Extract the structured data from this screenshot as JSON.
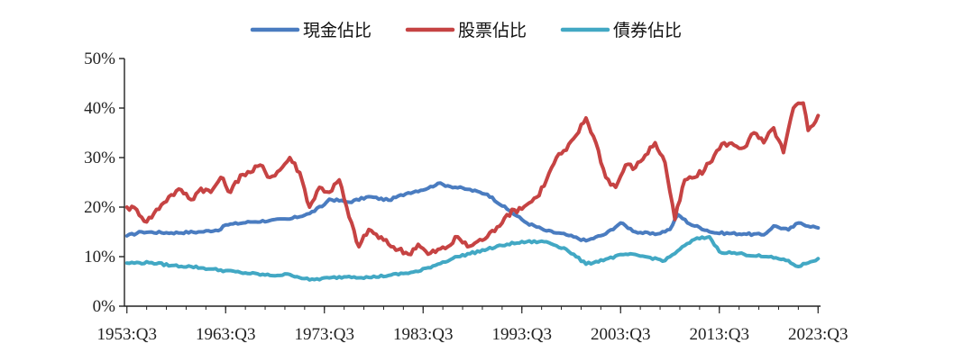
{
  "chart_data": {
    "type": "line",
    "ylim": [
      0,
      50
    ],
    "y_ticks": [
      "0%",
      "10%",
      "20%",
      "30%",
      "40%",
      "50%"
    ],
    "x_ticks": [
      "1953:Q3",
      "1963:Q3",
      "1973:Q3",
      "1983:Q3",
      "1993:Q3",
      "2003:Q3",
      "2013:Q3",
      "2023:Q3"
    ],
    "x_range": [
      "1953:Q3",
      "2023:Q3"
    ],
    "grid": false,
    "legend_position": "top",
    "series": [
      {
        "name": "現金佔比",
        "color": "#4a7cc0",
        "points": [
          [
            1953.5,
            14.2
          ],
          [
            1955,
            15.0
          ],
          [
            1958,
            14.8
          ],
          [
            1961,
            15.0
          ],
          [
            1963,
            15.5
          ],
          [
            1963.5,
            16.4
          ],
          [
            1966,
            17.0
          ],
          [
            1968,
            17.3
          ],
          [
            1970,
            17.6
          ],
          [
            1972,
            18.7
          ],
          [
            1973.5,
            20.5
          ],
          [
            1974,
            21.6
          ],
          [
            1976,
            21.0
          ],
          [
            1978,
            22.1
          ],
          [
            1980,
            21.4
          ],
          [
            1982,
            22.9
          ],
          [
            1984,
            23.8
          ],
          [
            1985,
            24.8
          ],
          [
            1986,
            24.3
          ],
          [
            1988,
            23.6
          ],
          [
            1990,
            22.6
          ],
          [
            1992,
            19.6
          ],
          [
            1994,
            16.8
          ],
          [
            1996,
            15.2
          ],
          [
            1998,
            14.4
          ],
          [
            2000,
            13.2
          ],
          [
            2002,
            14.6
          ],
          [
            2003.5,
            16.8
          ],
          [
            2005,
            15.0
          ],
          [
            2007,
            14.5
          ],
          [
            2008.5,
            15.5
          ],
          [
            2009.3,
            18.5
          ],
          [
            2010.5,
            16.6
          ],
          [
            2013,
            14.8
          ],
          [
            2016,
            14.6
          ],
          [
            2018,
            14.4
          ],
          [
            2019,
            16.2
          ],
          [
            2020.5,
            15.4
          ],
          [
            2021.5,
            16.8
          ],
          [
            2023.5,
            15.8
          ]
        ]
      },
      {
        "name": "股票佔比",
        "color": "#c64343",
        "points": [
          [
            1953.5,
            20.0
          ],
          [
            1954.5,
            19.5
          ],
          [
            1955.5,
            17.0
          ],
          [
            1957,
            20.5
          ],
          [
            1958,
            22.5
          ],
          [
            1959,
            23.5
          ],
          [
            1960,
            21.5
          ],
          [
            1961,
            23.8
          ],
          [
            1962,
            23.0
          ],
          [
            1963,
            26.0
          ],
          [
            1964,
            23.0
          ],
          [
            1965,
            26.5
          ],
          [
            1966,
            27.0
          ],
          [
            1967,
            28.5
          ],
          [
            1968,
            26.0
          ],
          [
            1969,
            27.5
          ],
          [
            1970,
            30.0
          ],
          [
            1971,
            27.0
          ],
          [
            1972,
            20.0
          ],
          [
            1973,
            24.0
          ],
          [
            1974,
            23.0
          ],
          [
            1975,
            25.5
          ],
          [
            1976,
            18.0
          ],
          [
            1977,
            12.0
          ],
          [
            1978,
            15.5
          ],
          [
            1980,
            12.5
          ],
          [
            1982,
            10.5
          ],
          [
            1983,
            12.5
          ],
          [
            1984,
            10.5
          ],
          [
            1986,
            12.0
          ],
          [
            1987,
            14.0
          ],
          [
            1988,
            12.0
          ],
          [
            1990,
            14.0
          ],
          [
            1991,
            16.0
          ],
          [
            1992,
            18.5
          ],
          [
            1994,
            20.5
          ],
          [
            1995,
            22.0
          ],
          [
            1996,
            25.5
          ],
          [
            1997,
            30.0
          ],
          [
            1998,
            31.5
          ],
          [
            1999,
            34.5
          ],
          [
            2000,
            38.0
          ],
          [
            2001,
            33.0
          ],
          [
            2002,
            26.0
          ],
          [
            2003,
            24.0
          ],
          [
            2004,
            28.5
          ],
          [
            2005,
            28.0
          ],
          [
            2006,
            30.5
          ],
          [
            2007,
            33.0
          ],
          [
            2008,
            29.0
          ],
          [
            2009,
            17.5
          ],
          [
            2010,
            25.5
          ],
          [
            2011,
            26.0
          ],
          [
            2012,
            27.5
          ],
          [
            2013,
            30.5
          ],
          [
            2014,
            33.0
          ],
          [
            2015,
            32.5
          ],
          [
            2016,
            32.0
          ],
          [
            2017,
            35.0
          ],
          [
            2018,
            33.0
          ],
          [
            2019,
            36.0
          ],
          [
            2020,
            31.0
          ],
          [
            2021,
            40.0
          ],
          [
            2022,
            41.0
          ],
          [
            2022.5,
            35.5
          ],
          [
            2023.5,
            38.5
          ]
        ]
      },
      {
        "name": "債券佔比",
        "color": "#42a8c4",
        "points": [
          [
            1953.5,
            8.7
          ],
          [
            1956,
            8.8
          ],
          [
            1958,
            8.2
          ],
          [
            1960,
            8.0
          ],
          [
            1962,
            7.5
          ],
          [
            1965,
            6.8
          ],
          [
            1968,
            6.2
          ],
          [
            1970,
            6.4
          ],
          [
            1972,
            5.3
          ],
          [
            1974,
            5.7
          ],
          [
            1976,
            6.0
          ],
          [
            1978,
            5.8
          ],
          [
            1980,
            6.2
          ],
          [
            1983,
            7.0
          ],
          [
            1985,
            8.5
          ],
          [
            1987,
            10.0
          ],
          [
            1990,
            11.5
          ],
          [
            1992,
            12.5
          ],
          [
            1994,
            13.0
          ],
          [
            1996,
            13.0
          ],
          [
            1998,
            11.5
          ],
          [
            2000,
            8.5
          ],
          [
            2002,
            9.5
          ],
          [
            2004,
            10.5
          ],
          [
            2006,
            10.0
          ],
          [
            2008,
            9.2
          ],
          [
            2009.5,
            11.5
          ],
          [
            2011,
            13.5
          ],
          [
            2012.5,
            14.0
          ],
          [
            2013.5,
            11.0
          ],
          [
            2016,
            10.5
          ],
          [
            2018,
            10.0
          ],
          [
            2020,
            9.5
          ],
          [
            2021.5,
            8.0
          ],
          [
            2023.5,
            9.6
          ]
        ]
      }
    ]
  }
}
